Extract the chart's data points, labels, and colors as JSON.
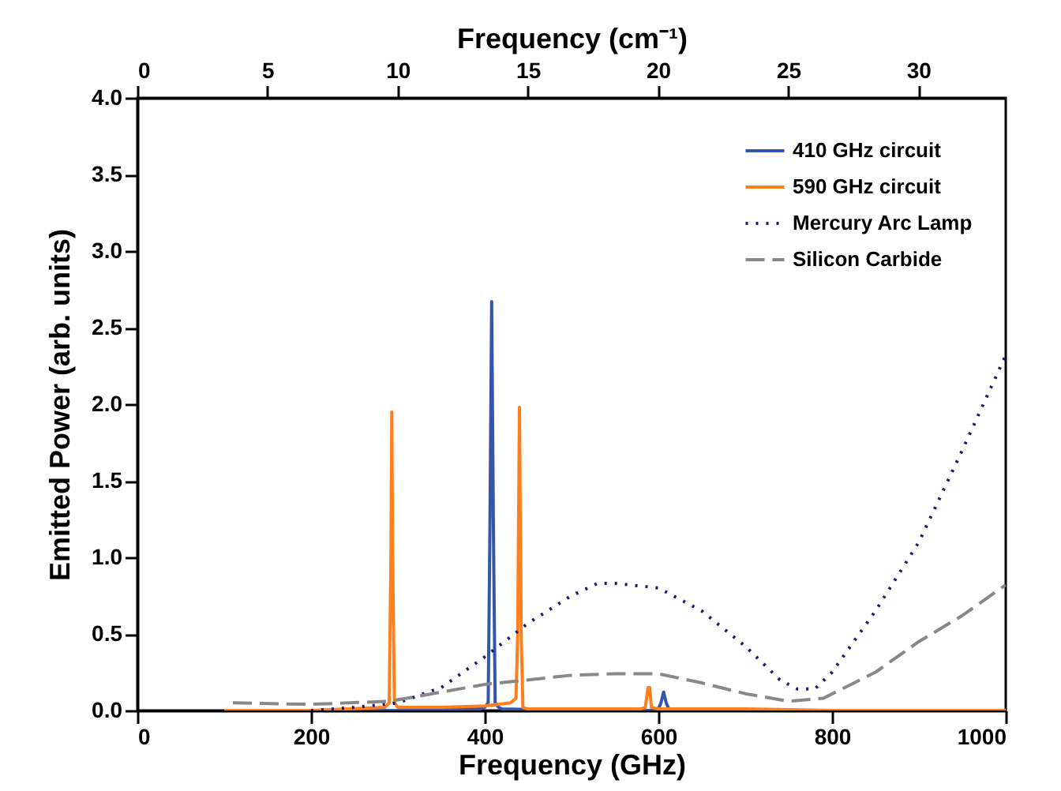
{
  "chart_data": {
    "type": "line",
    "xlabel": "Frequency (GHz)",
    "ylabel": "Emitted Power (arb. units)",
    "x2label": "Frequency (cm⁻¹)",
    "xlim": [
      0,
      1000
    ],
    "xticks": [
      0,
      200,
      400,
      600,
      800,
      1000
    ],
    "x2lim": [
      0,
      33.356
    ],
    "x2ticks": [
      0,
      5,
      10,
      15,
      20,
      25,
      30
    ],
    "ylim": [
      0,
      4
    ],
    "yticks": [
      {
        "value": 0,
        "label": "0.0"
      },
      {
        "value": 0.5,
        "label": "0.5"
      },
      {
        "value": 1,
        "label": "1.0"
      },
      {
        "value": 1.5,
        "label": "1.5"
      },
      {
        "value": 2,
        "label": "2.0"
      },
      {
        "value": 2.5,
        "label": "2.5"
      },
      {
        "value": 3,
        "label": "3.0"
      },
      {
        "value": 3.5,
        "label": "3.5"
      },
      {
        "value": 4,
        "label": "4.0"
      }
    ],
    "grid": false,
    "legend": "top right",
    "series": [
      {
        "name": "410 GHz circuit",
        "color": "#3355aa",
        "line_style": "solid",
        "x": [
          100,
          200,
          300,
          395,
          400,
          404,
          406,
          408,
          410,
          412,
          416,
          420,
          500,
          590,
          600,
          603,
          606,
          609,
          612,
          700
        ],
        "values": [
          0,
          0,
          0,
          0.01,
          0.02,
          0.05,
          1.2,
          2.67,
          1.2,
          0.05,
          0.02,
          0.01,
          0,
          0,
          0.01,
          0.05,
          0.12,
          0.05,
          0.01,
          0
        ]
      },
      {
        "name": "590 GHz circuit",
        "color": "#ff7f1e",
        "line_style": "solid",
        "x": [
          100,
          200,
          285,
          290,
          292,
          293,
          294,
          296,
          300,
          350,
          400,
          430,
          436,
          438,
          440,
          442,
          444,
          450,
          500,
          580,
          585,
          588,
          590,
          592,
          600,
          700,
          800,
          1000
        ],
        "values": [
          0,
          0,
          0.02,
          0.05,
          1.0,
          1.95,
          1.0,
          0.05,
          0.02,
          0.02,
          0.03,
          0.05,
          0.08,
          0.5,
          1.98,
          0.5,
          0.02,
          0.01,
          0.01,
          0.01,
          0.02,
          0.15,
          0.15,
          0.02,
          0.01,
          0.01,
          0,
          0
        ]
      },
      {
        "name": "Mercury Arc Lamp",
        "color": "#1c1c6e",
        "line_style": "dotted",
        "x": [
          200,
          250,
          300,
          350,
          400,
          450,
          500,
          530,
          550,
          600,
          650,
          700,
          740,
          760,
          780,
          800,
          850,
          900,
          950,
          1000
        ],
        "values": [
          0,
          0.02,
          0.05,
          0.15,
          0.35,
          0.57,
          0.75,
          0.83,
          0.83,
          0.8,
          0.65,
          0.42,
          0.2,
          0.14,
          0.14,
          0.25,
          0.65,
          1.1,
          1.7,
          2.32
        ]
      },
      {
        "name": "Silicon Carbide",
        "color": "#888888",
        "line_style": "dashed",
        "x": [
          110,
          200,
          290,
          350,
          400,
          450,
          500,
          550,
          600,
          650,
          700,
          750,
          790,
          850,
          900,
          950,
          1000
        ],
        "values": [
          0.05,
          0.04,
          0.06,
          0.12,
          0.17,
          0.2,
          0.23,
          0.24,
          0.24,
          0.18,
          0.11,
          0.06,
          0.08,
          0.25,
          0.45,
          0.62,
          0.82
        ]
      }
    ]
  }
}
